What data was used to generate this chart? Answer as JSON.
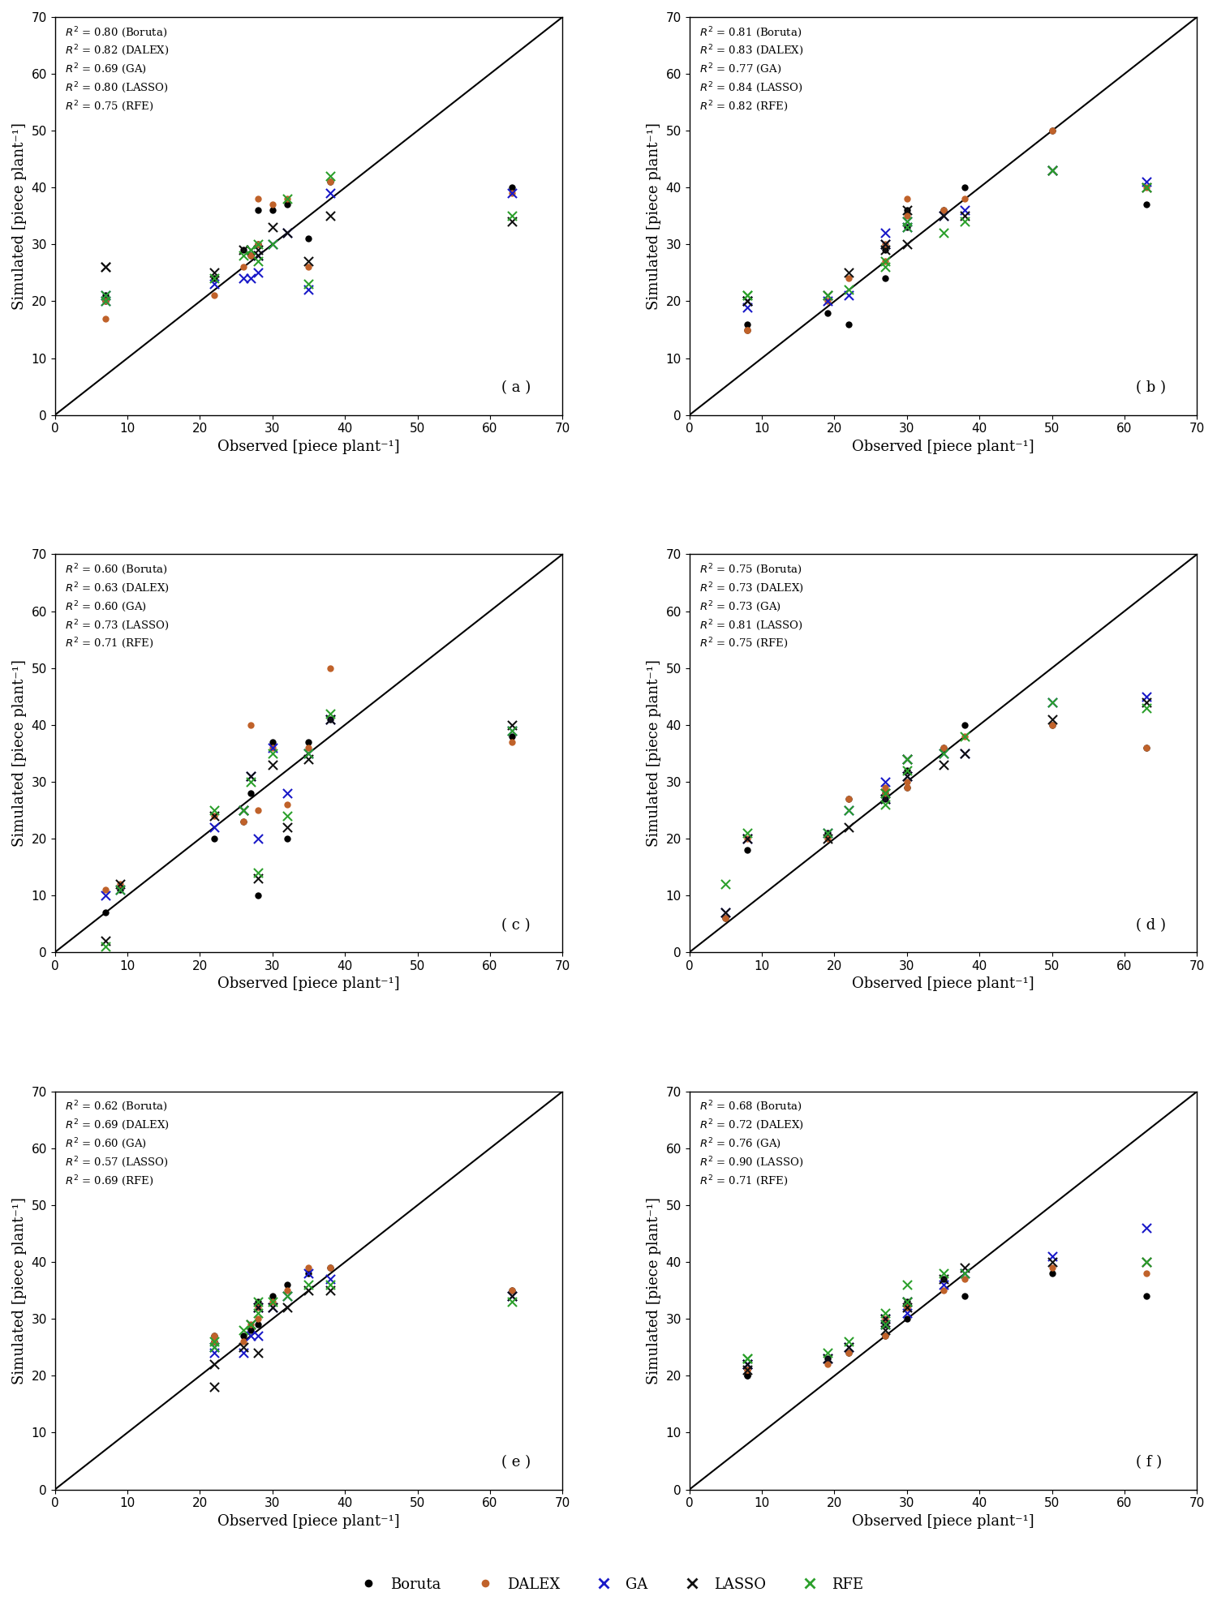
{
  "panels": [
    {
      "label": "( a )",
      "r2": {
        "Boruta": 0.8,
        "DALEX": 0.82,
        "GA": 0.69,
        "LASSO": 0.8,
        "RFE": 0.75
      },
      "Boruta": {
        "x": [
          7,
          7,
          22,
          26,
          27,
          28,
          28,
          30,
          32,
          35,
          38,
          63
        ],
        "y": [
          20,
          21,
          24,
          29,
          28,
          30,
          36,
          36,
          37,
          31,
          41,
          40
        ]
      },
      "DALEX": {
        "x": [
          7,
          7,
          22,
          26,
          27,
          28,
          28,
          30,
          32,
          35,
          38,
          63
        ],
        "y": [
          17,
          20,
          21,
          26,
          28,
          30,
          38,
          37,
          38,
          26,
          41,
          39
        ]
      },
      "GA": {
        "x": [
          7,
          7,
          22,
          26,
          27,
          28,
          28,
          30,
          32,
          35,
          38,
          63
        ],
        "y": [
          20,
          21,
          23,
          24,
          24,
          28,
          25,
          30,
          32,
          22,
          39,
          39
        ]
      },
      "LASSO": {
        "x": [
          7,
          7,
          22,
          26,
          27,
          28,
          28,
          30,
          32,
          35,
          38,
          63
        ],
        "y": [
          26,
          26,
          25,
          29,
          29,
          29,
          28,
          33,
          32,
          27,
          35,
          34
        ]
      },
      "RFE": {
        "x": [
          7,
          7,
          22,
          26,
          27,
          28,
          28,
          30,
          32,
          35,
          38,
          63
        ],
        "y": [
          20,
          21,
          24,
          28,
          29,
          30,
          27,
          30,
          38,
          23,
          42,
          35
        ]
      }
    },
    {
      "label": "( b )",
      "r2": {
        "Boruta": 0.81,
        "DALEX": 0.83,
        "GA": 0.77,
        "LASSO": 0.84,
        "RFE": 0.82
      },
      "Boruta": {
        "x": [
          8,
          8,
          19,
          22,
          27,
          27,
          30,
          30,
          35,
          38,
          50,
          63
        ],
        "y": [
          15,
          16,
          18,
          16,
          24,
          29,
          33,
          36,
          36,
          40,
          50,
          37
        ]
      },
      "DALEX": {
        "x": [
          8,
          8,
          19,
          22,
          27,
          27,
          30,
          30,
          35,
          38,
          50,
          63
        ],
        "y": [
          15,
          15,
          20,
          24,
          27,
          30,
          35,
          38,
          36,
          38,
          50,
          40
        ]
      },
      "GA": {
        "x": [
          8,
          8,
          19,
          22,
          27,
          27,
          30,
          30,
          35,
          38,
          50,
          63
        ],
        "y": [
          19,
          20,
          20,
          21,
          32,
          30,
          34,
          33,
          35,
          36,
          43,
          41
        ]
      },
      "LASSO": {
        "x": [
          8,
          8,
          19,
          22,
          27,
          27,
          30,
          30,
          35,
          38,
          50,
          63
        ],
        "y": [
          20,
          20,
          21,
          25,
          29,
          30,
          30,
          36,
          35,
          35,
          43,
          40
        ]
      },
      "RFE": {
        "x": [
          8,
          8,
          19,
          22,
          27,
          27,
          30,
          30,
          35,
          38,
          50,
          63
        ],
        "y": [
          21,
          21,
          21,
          22,
          26,
          27,
          33,
          34,
          32,
          34,
          43,
          40
        ]
      }
    },
    {
      "label": "( c )",
      "r2": {
        "Boruta": 0.6,
        "DALEX": 0.63,
        "GA": 0.6,
        "LASSO": 0.73,
        "RFE": 0.71
      },
      "Boruta": {
        "x": [
          7,
          9,
          22,
          26,
          27,
          28,
          30,
          32,
          35,
          38,
          63
        ],
        "y": [
          7,
          11,
          20,
          23,
          28,
          10,
          37,
          20,
          37,
          41,
          38
        ]
      },
      "DALEX": {
        "x": [
          7,
          9,
          22,
          26,
          27,
          28,
          30,
          32,
          35,
          38,
          63
        ],
        "y": [
          11,
          12,
          24,
          23,
          40,
          25,
          36,
          26,
          36,
          50,
          37
        ]
      },
      "GA": {
        "x": [
          7,
          9,
          22,
          26,
          27,
          28,
          30,
          32,
          35,
          38,
          63
        ],
        "y": [
          10,
          11,
          22,
          25,
          31,
          20,
          36,
          28,
          35,
          41,
          39
        ]
      },
      "LASSO": {
        "x": [
          7,
          9,
          22,
          26,
          27,
          28,
          30,
          32,
          35,
          38,
          63
        ],
        "y": [
          2,
          12,
          24,
          25,
          31,
          13,
          33,
          22,
          34,
          41,
          40
        ]
      },
      "RFE": {
        "x": [
          7,
          9,
          22,
          26,
          27,
          28,
          30,
          32,
          35,
          38,
          63
        ],
        "y": [
          1,
          11,
          25,
          25,
          30,
          14,
          35,
          24,
          35,
          42,
          39
        ]
      }
    },
    {
      "label": "( d )",
      "r2": {
        "Boruta": 0.75,
        "DALEX": 0.73,
        "GA": 0.73,
        "LASSO": 0.81,
        "RFE": 0.75
      },
      "Boruta": {
        "x": [
          5,
          8,
          19,
          22,
          27,
          27,
          30,
          30,
          35,
          38,
          50,
          63
        ],
        "y": [
          6,
          18,
          21,
          27,
          27,
          28,
          29,
          32,
          36,
          40,
          40,
          36
        ]
      },
      "DALEX": {
        "x": [
          5,
          8,
          19,
          22,
          27,
          27,
          30,
          30,
          35,
          38,
          50,
          63
        ],
        "y": [
          6,
          20,
          20,
          27,
          28,
          29,
          29,
          30,
          36,
          38,
          40,
          36
        ]
      },
      "GA": {
        "x": [
          5,
          8,
          19,
          22,
          27,
          27,
          30,
          30,
          35,
          38,
          50,
          63
        ],
        "y": [
          7,
          20,
          21,
          25,
          27,
          30,
          31,
          34,
          35,
          35,
          44,
          45
        ]
      },
      "LASSO": {
        "x": [
          5,
          8,
          19,
          22,
          27,
          27,
          30,
          30,
          35,
          38,
          50,
          63
        ],
        "y": [
          7,
          20,
          20,
          22,
          27,
          28,
          31,
          34,
          33,
          35,
          41,
          44
        ]
      },
      "RFE": {
        "x": [
          5,
          8,
          19,
          22,
          27,
          27,
          30,
          30,
          35,
          38,
          50,
          63
        ],
        "y": [
          12,
          21,
          21,
          25,
          28,
          26,
          32,
          34,
          35,
          38,
          44,
          43
        ]
      }
    },
    {
      "label": "( e )",
      "r2": {
        "Boruta": 0.62,
        "DALEX": 0.69,
        "GA": 0.6,
        "LASSO": 0.57,
        "RFE": 0.69
      },
      "Boruta": {
        "x": [
          22,
          22,
          26,
          27,
          28,
          28,
          30,
          32,
          35,
          38,
          63
        ],
        "y": [
          26,
          27,
          27,
          28,
          29,
          33,
          34,
          36,
          38,
          39,
          35
        ]
      },
      "DALEX": {
        "x": [
          22,
          22,
          26,
          27,
          28,
          28,
          30,
          32,
          35,
          38,
          63
        ],
        "y": [
          26,
          27,
          26,
          29,
          30,
          32,
          33,
          35,
          39,
          39,
          35
        ]
      },
      "GA": {
        "x": [
          22,
          22,
          26,
          27,
          28,
          28,
          30,
          32,
          35,
          38,
          63
        ],
        "y": [
          24,
          25,
          24,
          27,
          27,
          32,
          32,
          34,
          38,
          37,
          34
        ]
      },
      "LASSO": {
        "x": [
          22,
          22,
          26,
          27,
          28,
          28,
          30,
          32,
          35,
          38,
          63
        ],
        "y": [
          18,
          22,
          25,
          29,
          24,
          32,
          32,
          32,
          35,
          35,
          34
        ]
      },
      "RFE": {
        "x": [
          22,
          22,
          26,
          27,
          28,
          28,
          30,
          32,
          35,
          38,
          63
        ],
        "y": [
          25,
          26,
          28,
          29,
          31,
          33,
          33,
          34,
          36,
          36,
          33
        ]
      }
    },
    {
      "label": "( f )",
      "r2": {
        "Boruta": 0.68,
        "DALEX": 0.72,
        "GA": 0.76,
        "LASSO": 0.9,
        "RFE": 0.71
      },
      "Boruta": {
        "x": [
          8,
          8,
          19,
          22,
          27,
          27,
          30,
          30,
          35,
          38,
          50,
          63
        ],
        "y": [
          20,
          20,
          23,
          24,
          27,
          29,
          30,
          33,
          37,
          34,
          38,
          34
        ]
      },
      "DALEX": {
        "x": [
          8,
          8,
          19,
          22,
          27,
          27,
          30,
          30,
          35,
          38,
          50,
          63
        ],
        "y": [
          21,
          21,
          22,
          24,
          27,
          30,
          32,
          32,
          35,
          37,
          39,
          38
        ]
      },
      "GA": {
        "x": [
          8,
          8,
          19,
          22,
          27,
          27,
          30,
          30,
          35,
          38,
          50,
          63
        ],
        "y": [
          22,
          22,
          23,
          25,
          29,
          30,
          31,
          33,
          36,
          38,
          41,
          46
        ]
      },
      "LASSO": {
        "x": [
          8,
          8,
          19,
          22,
          27,
          27,
          30,
          30,
          35,
          38,
          50,
          63
        ],
        "y": [
          21,
          22,
          23,
          25,
          28,
          30,
          32,
          33,
          37,
          39,
          40,
          40
        ]
      },
      "RFE": {
        "x": [
          8,
          8,
          19,
          22,
          27,
          27,
          30,
          30,
          35,
          38,
          63
        ],
        "y": [
          23,
          23,
          24,
          26,
          29,
          31,
          33,
          36,
          38,
          38,
          40
        ]
      }
    }
  ],
  "colors": {
    "Boruta": "#000000",
    "DALEX": "#c0622a",
    "GA": "#1919c8",
    "LASSO": "#111111",
    "RFE": "#2ca02c"
  },
  "markers": {
    "Boruta": "o",
    "DALEX": "o",
    "GA": "x",
    "LASSO": "x",
    "RFE": "x"
  },
  "marker_sizes": {
    "Boruta": 6,
    "DALEX": 6,
    "GA": 8,
    "LASSO": 8,
    "RFE": 8
  },
  "xlim": [
    0,
    70
  ],
  "ylim": [
    0,
    70
  ],
  "xticks": [
    0,
    10,
    20,
    30,
    40,
    50,
    60,
    70
  ],
  "yticks": [
    0,
    10,
    20,
    30,
    40,
    50,
    60,
    70
  ],
  "xlabel": "Observed [piece plant⁻¹]",
  "ylabel": "Simulated [piece plant⁻¹]",
  "legend_labels": [
    "Boruta",
    "DALEX",
    "GA",
    "LASSO",
    "RFE"
  ],
  "figure_bg": "#ffffff"
}
